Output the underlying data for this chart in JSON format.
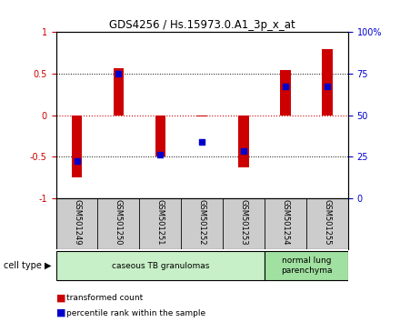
{
  "title": "GDS4256 / Hs.15973.0.A1_3p_x_at",
  "samples": [
    "GSM501249",
    "GSM501250",
    "GSM501251",
    "GSM501252",
    "GSM501253",
    "GSM501254",
    "GSM501255"
  ],
  "red_bars": [
    -0.75,
    0.57,
    -0.5,
    -0.02,
    -0.63,
    0.54,
    0.8
  ],
  "blue_dots": [
    -0.55,
    0.5,
    -0.48,
    -0.32,
    -0.43,
    0.35,
    0.35
  ],
  "ylim": [
    -1.0,
    1.0
  ],
  "yticks_left": [
    -1,
    -0.5,
    0,
    0.5,
    1
  ],
  "yticks_right": [
    0,
    25,
    50,
    75,
    100
  ],
  "red_color": "#cc0000",
  "blue_color": "#0000cc",
  "bar_width": 0.25,
  "blue_dot_size": 25,
  "groups": [
    {
      "label": "caseous TB granulomas",
      "start": 0,
      "end": 5,
      "color": "#c8f0c8"
    },
    {
      "label": "normal lung\nparenchyma",
      "start": 5,
      "end": 7,
      "color": "#a0e0a0"
    }
  ],
  "legend_red": "transformed count",
  "legend_blue": "percentile rank within the sample",
  "background_color": "#ffffff",
  "plot_bg": "#ffffff",
  "tick_color_left": "#cc0000",
  "tick_color_right": "#0000cc",
  "sample_bg": "#cccccc"
}
